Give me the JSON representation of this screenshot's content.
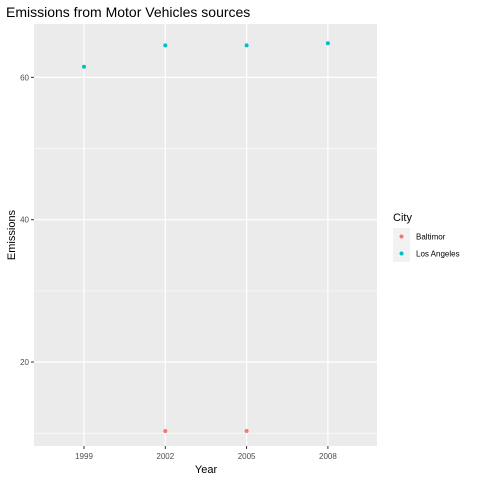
{
  "chart_data": {
    "type": "scatter",
    "title": "Emissions from Motor Vehicles sources",
    "xlabel": "Year",
    "ylabel": "Emissions",
    "x_categories": [
      "1999",
      "2002",
      "2005",
      "2008"
    ],
    "ylim": [
      8.2,
      67.5
    ],
    "y_ticks": [
      20,
      40,
      60
    ],
    "y_tick_labels": [
      "20",
      "40",
      "60"
    ],
    "grid": true,
    "legend": {
      "title": "City",
      "placement": "right"
    },
    "series": [
      {
        "name": "Baltimor",
        "color": "#F8766D",
        "points": [
          {
            "x": "2002",
            "y": 10.3
          },
          {
            "x": "2005",
            "y": 10.3
          }
        ]
      },
      {
        "name": "Los Angeles",
        "color": "#00BFC4",
        "points": [
          {
            "x": "1999",
            "y": 61.5
          },
          {
            "x": "2002",
            "y": 64.5
          },
          {
            "x": "2005",
            "y": 64.5
          },
          {
            "x": "2008",
            "y": 64.8
          }
        ]
      }
    ]
  }
}
